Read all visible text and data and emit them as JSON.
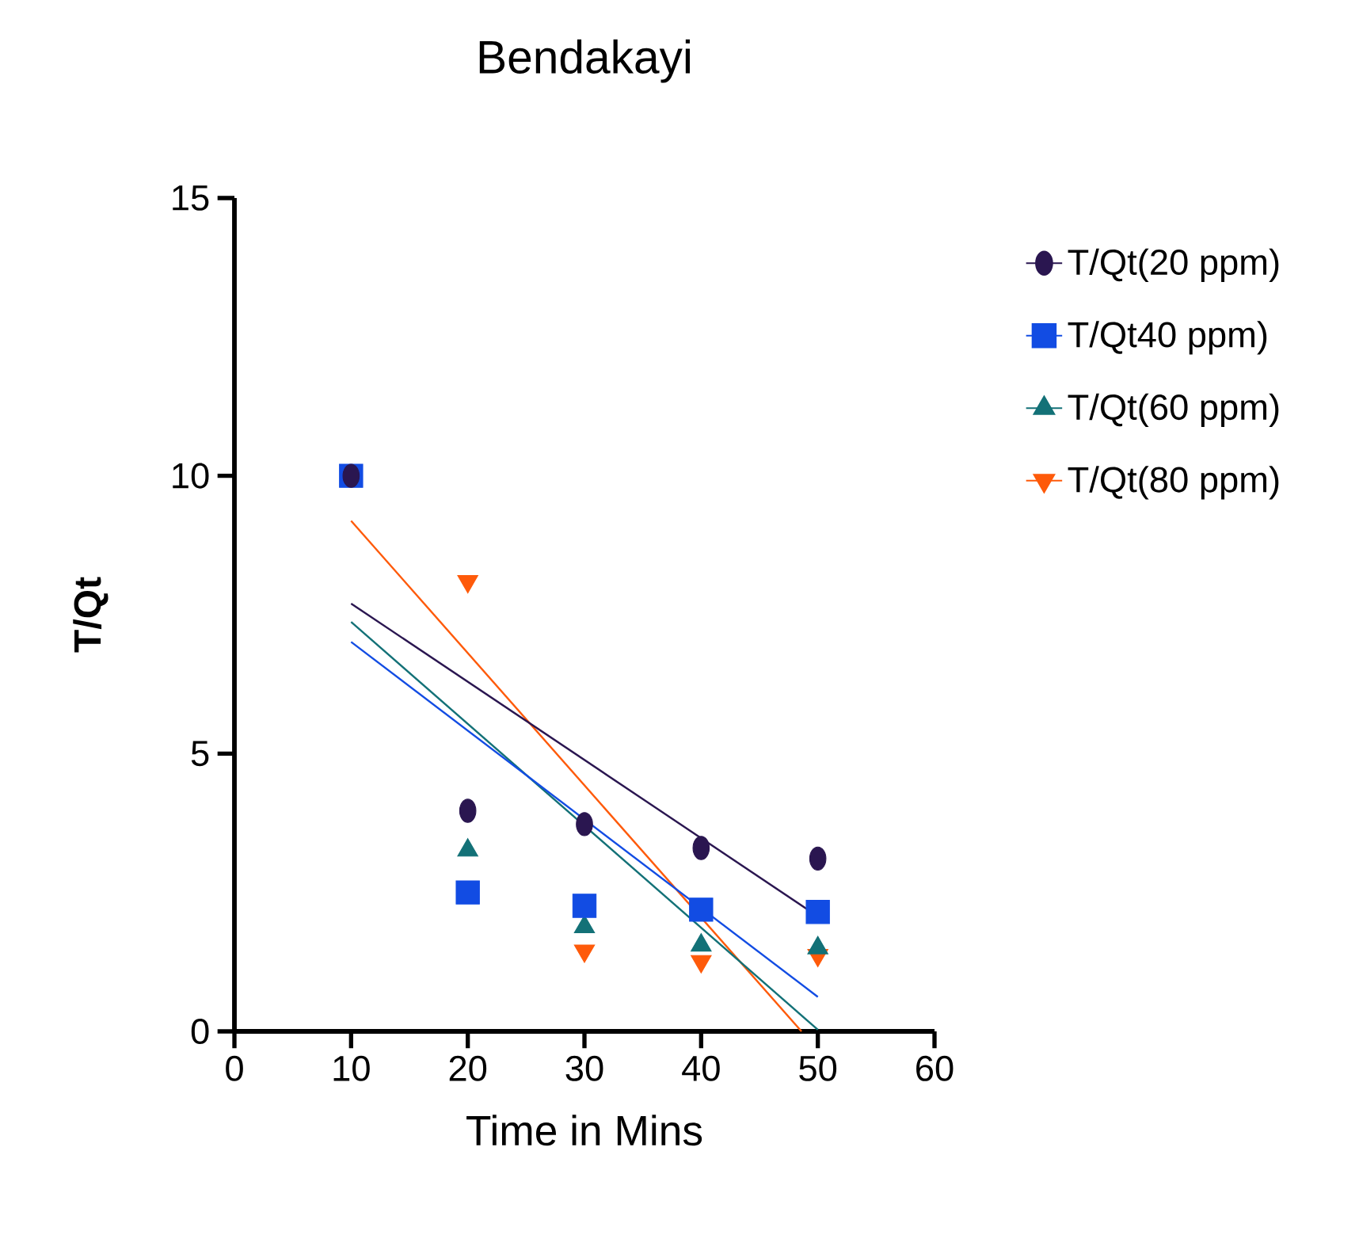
{
  "chart_data": {
    "type": "scatter",
    "title": "Bendakayi",
    "xlabel": "Time in Mins",
    "ylabel": "T/Qt",
    "x": [
      10,
      20,
      30,
      40,
      50
    ],
    "series": [
      {
        "name": "T/Qt(20 ppm)",
        "color": "#2a1650",
        "marker": "circle",
        "values": [
          10.0,
          3.97,
          3.73,
          3.3,
          3.11
        ]
      },
      {
        "name": "T/Qt40 ppm)",
        "color": "#124ce3",
        "marker": "square",
        "values": [
          10.0,
          2.5,
          2.26,
          2.19,
          2.15
        ]
      },
      {
        "name": "T/Qt(60 ppm)",
        "color": "#137177",
        "marker": "triangle",
        "values": [
          null,
          3.26,
          1.88,
          1.55,
          1.5
        ]
      },
      {
        "name": "T/Qt(80 ppm)",
        "color": "#fe5a0a",
        "marker": "triangle-down",
        "values": [
          null,
          8.1,
          1.45,
          1.26,
          1.37
        ]
      },
      {
        "type": "line",
        "color": "#2a1650",
        "x": [
          10,
          50
        ],
        "values": [
          7.7,
          2.07
        ]
      },
      {
        "type": "line",
        "color": "#124ce3",
        "x": [
          10,
          50
        ],
        "values": [
          7.01,
          0.62
        ]
      },
      {
        "type": "line",
        "color": "#137177",
        "x": [
          10,
          50
        ],
        "values": [
          7.37,
          0.03
        ]
      },
      {
        "type": "line",
        "color": "#fe5a0a",
        "x": [
          10,
          48.6
        ],
        "values": [
          9.19,
          0
        ]
      }
    ],
    "xlim": [
      0,
      60
    ],
    "xticks": [
      0,
      10,
      20,
      30,
      40,
      50,
      60
    ],
    "ylim": [
      0,
      15
    ],
    "yticks": [
      0,
      5,
      10,
      15
    ],
    "legend": "right",
    "grid": false
  }
}
